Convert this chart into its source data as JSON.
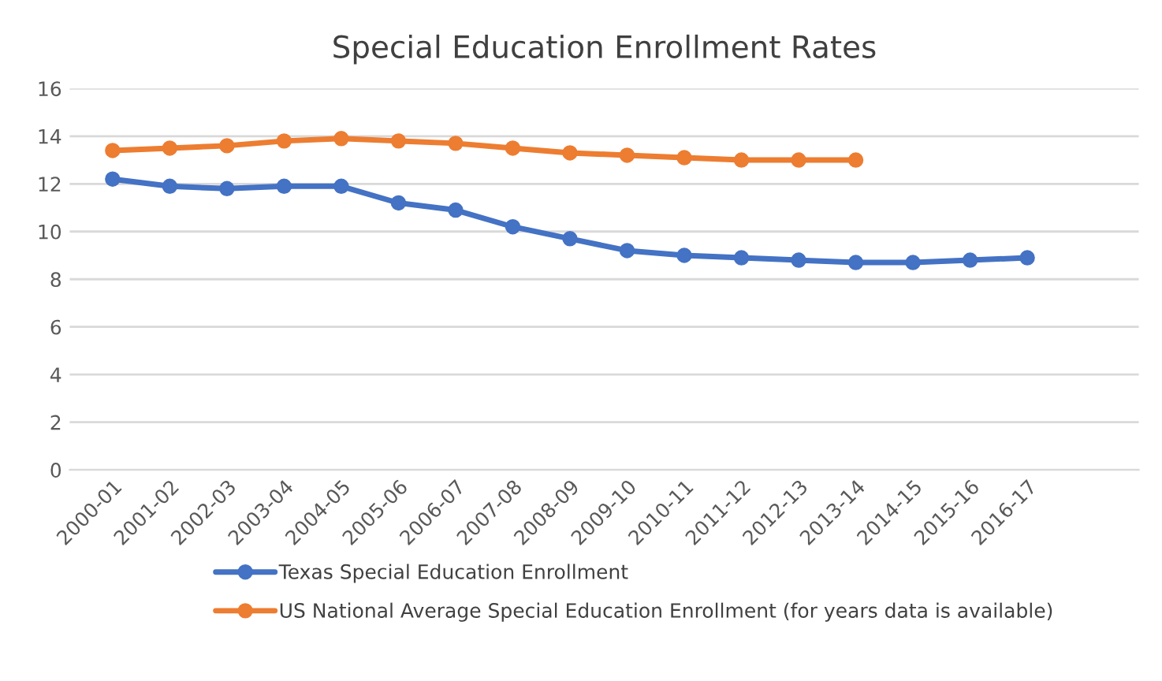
{
  "chart_data": {
    "type": "line",
    "title": "Special Education Enrollment Rates",
    "categories": [
      "2000-01",
      "2001-02",
      "2002-03",
      "2003-04",
      "2004-05",
      "2005-06",
      "2006-07",
      "2007-08",
      "2008-09",
      "2009-10",
      "2010-11",
      "2011-12",
      "2012-13",
      "2013-14",
      "2014-15",
      "2015-16",
      "2016-17"
    ],
    "series": [
      {
        "name": "Texas Special Education Enrollment",
        "color": "#4472c4",
        "values": [
          12.2,
          11.9,
          11.8,
          11.9,
          11.9,
          11.2,
          10.9,
          10.2,
          9.7,
          9.2,
          9.0,
          8.9,
          8.8,
          8.7,
          8.7,
          8.8,
          8.9
        ]
      },
      {
        "name": "US National Average Special Education Enrollment (for years data is available)",
        "color": "#ed7d31",
        "values": [
          13.4,
          13.5,
          13.6,
          13.8,
          13.9,
          13.8,
          13.7,
          13.5,
          13.3,
          13.2,
          13.1,
          13.0,
          13.0,
          13.0,
          null,
          null,
          null
        ]
      }
    ],
    "ylim": [
      0,
      16
    ],
    "yticks": [
      0,
      2,
      4,
      6,
      8,
      10,
      12,
      14,
      16
    ],
    "grid": "y",
    "legend": "bottom",
    "marker": "circle",
    "line_style": "solid"
  }
}
